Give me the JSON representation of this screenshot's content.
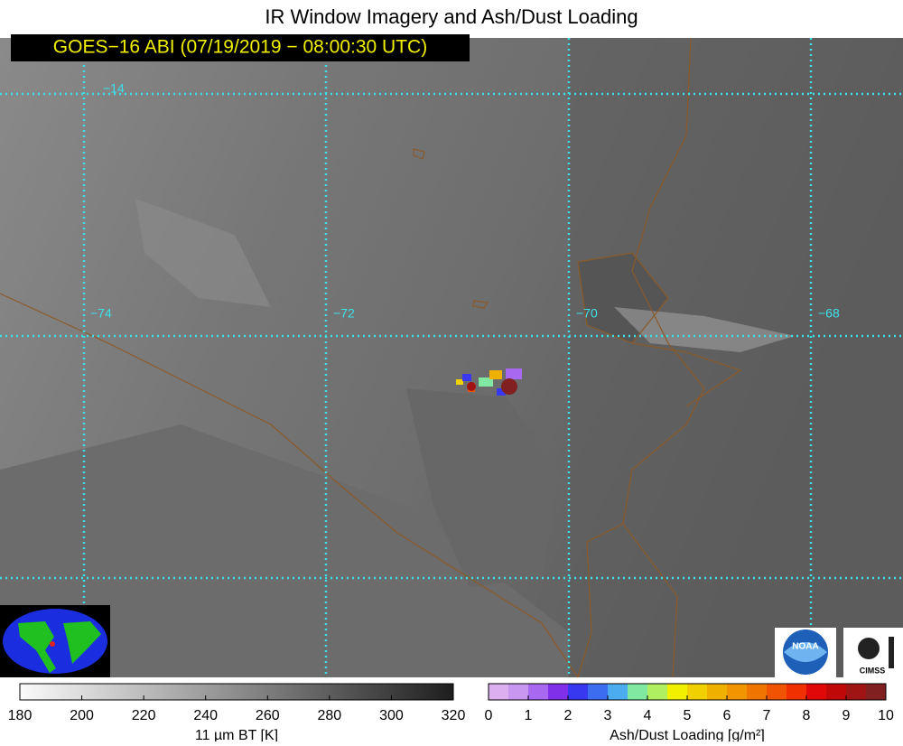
{
  "header": {
    "title": "IR Window Imagery and Ash/Dust Loading",
    "timestamp": "GOES−16 ABI (07/19/2019 − 08:00:30 UTC)"
  },
  "map": {
    "grid_labels": [
      "−14",
      "−74",
      "−72",
      "−70",
      "−68"
    ]
  },
  "logos": [
    "NOAA",
    "CIMSS"
  ],
  "colorbars": [
    {
      "label": "11 µm BT [K]",
      "range": [
        180,
        320
      ],
      "ticks": [
        180,
        200,
        220,
        240,
        260,
        280,
        300,
        320
      ],
      "colors": [
        "#fbfbfb",
        "#1e1e1e"
      ],
      "gradient": true
    },
    {
      "label": "Ash/Dust Loading [g/m²]",
      "range": [
        0,
        10
      ],
      "ticks": [
        0,
        1,
        2,
        3,
        4,
        5,
        6,
        7,
        8,
        9,
        10
      ],
      "gradient": false,
      "colors": [
        "#dcb0f0",
        "#c898f0",
        "#a868f0",
        "#8030e8",
        "#3838f0",
        "#3c6cf0",
        "#4cacf0",
        "#80e8a0",
        "#b0f060",
        "#f0f000",
        "#f0d000",
        "#f0b000",
        "#f09400",
        "#f07400",
        "#f05400",
        "#f03000",
        "#e00808",
        "#c00808",
        "#a01414",
        "#802020"
      ]
    }
  ]
}
